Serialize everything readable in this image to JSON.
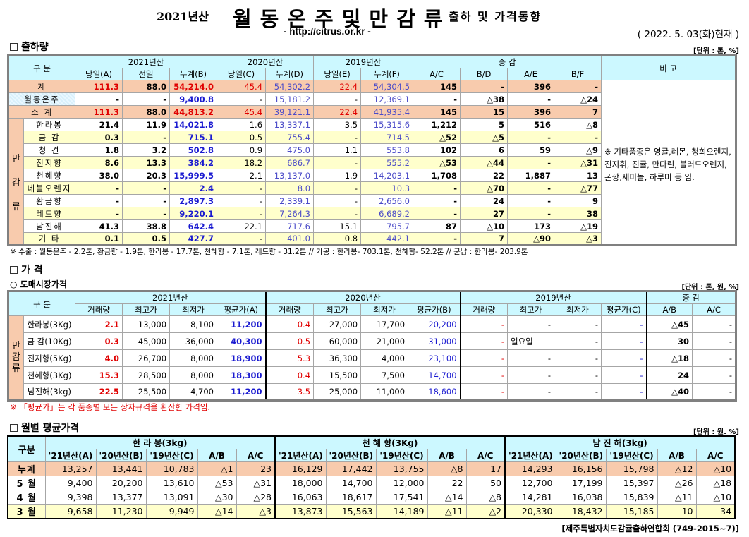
{
  "header": {
    "year": "2021년산",
    "title": "월동온주및만감류",
    "subtitle": "출하 및 가격동향",
    "url": "- http://citrus.or.kr -",
    "date": "( 2022. 5. 03(화)현재 )"
  },
  "shipments": {
    "section": "출하량",
    "unit": "[단위 : 톤, %]",
    "head_label": "구  분",
    "side_label": "만\n\n감\n\n류",
    "groups": [
      "2021년산",
      "2020년산",
      "2019년산",
      "증  감",
      "비 고"
    ],
    "cols": [
      "당일(A)",
      "전일",
      "누계(B)",
      "당일(C)",
      "누계(D)",
      "당일(E)",
      "누계(F)",
      "A/C",
      "B/D",
      "A/E",
      "B/F"
    ],
    "remark": "※ 기타품종은 영귤,레몬, 청희오렌지, 진지휘, 진귤, 만다린, 블러드오렌지, 폰깡,세미놀, 하루미 등 임.",
    "rows": [
      {
        "name": "계",
        "v": [
          "111.3",
          "88.0",
          "54,214.0",
          "45.4",
          "54,302.2",
          "22.4",
          "54,304.5",
          "145",
          "-",
          "396",
          "-"
        ]
      },
      {
        "name": "월동온주",
        "v": [
          "-",
          "-",
          "9,400.8",
          "-",
          "15,181.2",
          "-",
          "12,369.1",
          "-",
          "△38",
          "-",
          "△24"
        ]
      },
      {
        "name": "소  계",
        "v": [
          "111.3",
          "88.0",
          "44,813.2",
          "45.4",
          "39,121.1",
          "22.4",
          "41,935.4",
          "145",
          "15",
          "396",
          "7"
        ]
      },
      {
        "name": "한라봉",
        "v": [
          "21.4",
          "11.9",
          "14,021.8",
          "1.6",
          "13,337.1",
          "3.5",
          "15,315.6",
          "1,212",
          "5",
          "516",
          "△8"
        ]
      },
      {
        "name": "금  감",
        "v": [
          "0.3",
          "-",
          "715.1",
          "0.5",
          "755.4",
          "-",
          "714.5",
          "△52",
          "△5",
          "-",
          "-"
        ]
      },
      {
        "name": "청  견",
        "v": [
          "1.8",
          "3.2",
          "502.8",
          "0.9",
          "475.0",
          "1.1",
          "553.8",
          "102",
          "6",
          "59",
          "△9"
        ]
      },
      {
        "name": "진지향",
        "v": [
          "8.6",
          "13.3",
          "384.2",
          "18.2",
          "686.7",
          "-",
          "555.2",
          "△53",
          "△44",
          "-",
          "△31"
        ]
      },
      {
        "name": "천혜향",
        "v": [
          "38.0",
          "20.3",
          "15,999.5",
          "2.1",
          "13,137.0",
          "1.9",
          "14,203.1",
          "1,708",
          "22",
          "1,887",
          "13"
        ]
      },
      {
        "name": "네블오렌지",
        "v": [
          "-",
          "-",
          "2.4",
          "-",
          "8.0",
          "-",
          "10.3",
          "-",
          "△70",
          "-",
          "△77"
        ]
      },
      {
        "name": "황금향",
        "v": [
          "-",
          "-",
          "2,897.3",
          "-",
          "2,339.1",
          "-",
          "2,656.0",
          "-",
          "24",
          "-",
          "9"
        ]
      },
      {
        "name": "레드향",
        "v": [
          "-",
          "-",
          "9,220.1",
          "-",
          "7,264.3",
          "-",
          "6,689.2",
          "-",
          "27",
          "-",
          "38"
        ]
      },
      {
        "name": "남진해",
        "v": [
          "41.3",
          "38.8",
          "642.4",
          "22.1",
          "717.6",
          "15.1",
          "795.7",
          "87",
          "△10",
          "173",
          "△19"
        ]
      },
      {
        "name": "기  타",
        "v": [
          "0.1",
          "0.5",
          "427.7",
          "-",
          "401.0",
          "0.8",
          "442.1",
          "-",
          "7",
          "△90",
          "△3"
        ]
      }
    ],
    "footnote": "※ 수출 :  월동온주 - 2.2톤,  황금향 - 1.9톤,  한라봉 - 17.7톤,  천혜향 - 7.1톤,  레드향 - 31.2톤  //  가공 : 한라봉- 703.1톤,  천혜향- 52.2톤  //  군납 : 한라봉- 203.9톤"
  },
  "prices": {
    "section": "가      격",
    "subsection": "○ 도매시장가격",
    "unit": "[단위 : 톤, 원, %]",
    "head_label": "구  분",
    "side_label": "만\n감\n류",
    "groups": [
      "2021년산",
      "2020년산",
      "2019년산",
      "증  감"
    ],
    "cols": [
      "거래량",
      "최고가",
      "최저가",
      "평균가(A)",
      "거래량",
      "최고가",
      "최저가",
      "평균가(B)",
      "거래량",
      "최고가",
      "최저가",
      "평균가(C)",
      "A/B",
      "A/C"
    ],
    "rows": [
      {
        "name": "한라봉(3Kg)",
        "v": [
          "2.1",
          "13,000",
          "8,100",
          "11,200",
          "0.4",
          "27,000",
          "17,700",
          "20,200",
          "-",
          "-",
          "-",
          "-",
          "△45",
          "-"
        ]
      },
      {
        "name": "금  감(10Kg)",
        "v": [
          "0.3",
          "45,000",
          "36,000",
          "40,300",
          "0.5",
          "60,000",
          "21,000",
          "31,000",
          "-",
          "일요일",
          "-",
          "-",
          "30",
          "-"
        ]
      },
      {
        "name": "진지향(5Kg)",
        "v": [
          "4.0",
          "26,700",
          "8,000",
          "18,900",
          "5.3",
          "36,300",
          "4,000",
          "23,100",
          "-",
          "-",
          "-",
          "-",
          "△18",
          "-"
        ]
      },
      {
        "name": "천혜향(3Kg)",
        "v": [
          "15.3",
          "28,500",
          "8,000",
          "18,300",
          "0.4",
          "15,500",
          "7,500",
          "14,700",
          "-",
          "-",
          "-",
          "-",
          "24",
          "-"
        ]
      },
      {
        "name": "남진해(3kg)",
        "v": [
          "22.5",
          "25,500",
          "4,700",
          "11,200",
          "3.5",
          "25,000",
          "11,000",
          "18,600",
          "-",
          "-",
          "-",
          "-",
          "△40",
          "-"
        ]
      }
    ],
    "footnote": "※  「평균가」는 각 품종별 모든 상자규격을 환산한 가격임."
  },
  "monthly": {
    "section": "월별 평균가격",
    "unit": "[단위 : 원. %]",
    "head_label": "구분",
    "groups": [
      "한  라  봉(3kg)",
      "천  혜  향(3Kg)",
      "남  진  해(3kg)"
    ],
    "cols": [
      "'21년산(A)",
      "'20년산(B)",
      "'19년산(C)",
      "A/B",
      "A/C"
    ],
    "rows": [
      {
        "name": "누계",
        "v": [
          "13,257",
          "13,441",
          "10,783",
          "△1",
          "23",
          "16,129",
          "17,442",
          "13,755",
          "△8",
          "17",
          "14,293",
          "16,156",
          "15,798",
          "△12",
          "△10"
        ]
      },
      {
        "name": "5 월",
        "v": [
          "9,400",
          "20,200",
          "13,610",
          "△53",
          "△31",
          "18,000",
          "14,700",
          "12,000",
          "22",
          "50",
          "12,700",
          "17,199",
          "15,397",
          "△26",
          "△18"
        ]
      },
      {
        "name": "4 월",
        "v": [
          "9,398",
          "13,377",
          "13,091",
          "△30",
          "△28",
          "16,063",
          "18,617",
          "17,541",
          "△14",
          "△8",
          "14,281",
          "16,038",
          "15,839",
          "△11",
          "△10"
        ]
      },
      {
        "name": "3 월",
        "v": [
          "9,658",
          "11,230",
          "9,949",
          "△14",
          "△3",
          "13,873",
          "15,563",
          "14,189",
          "△11",
          "△2",
          "20,330",
          "18,432",
          "15,185",
          "10",
          "34"
        ]
      }
    ],
    "credit": "[제주특별자치도감귤출하연합회 (749-2015~7)]"
  },
  "colors": {
    "header": "#ccf8ff",
    "total_row": "#f8cbad",
    "alt_row": "#ffffcc",
    "red": "#e00000",
    "blue": "#1a1ad0"
  }
}
